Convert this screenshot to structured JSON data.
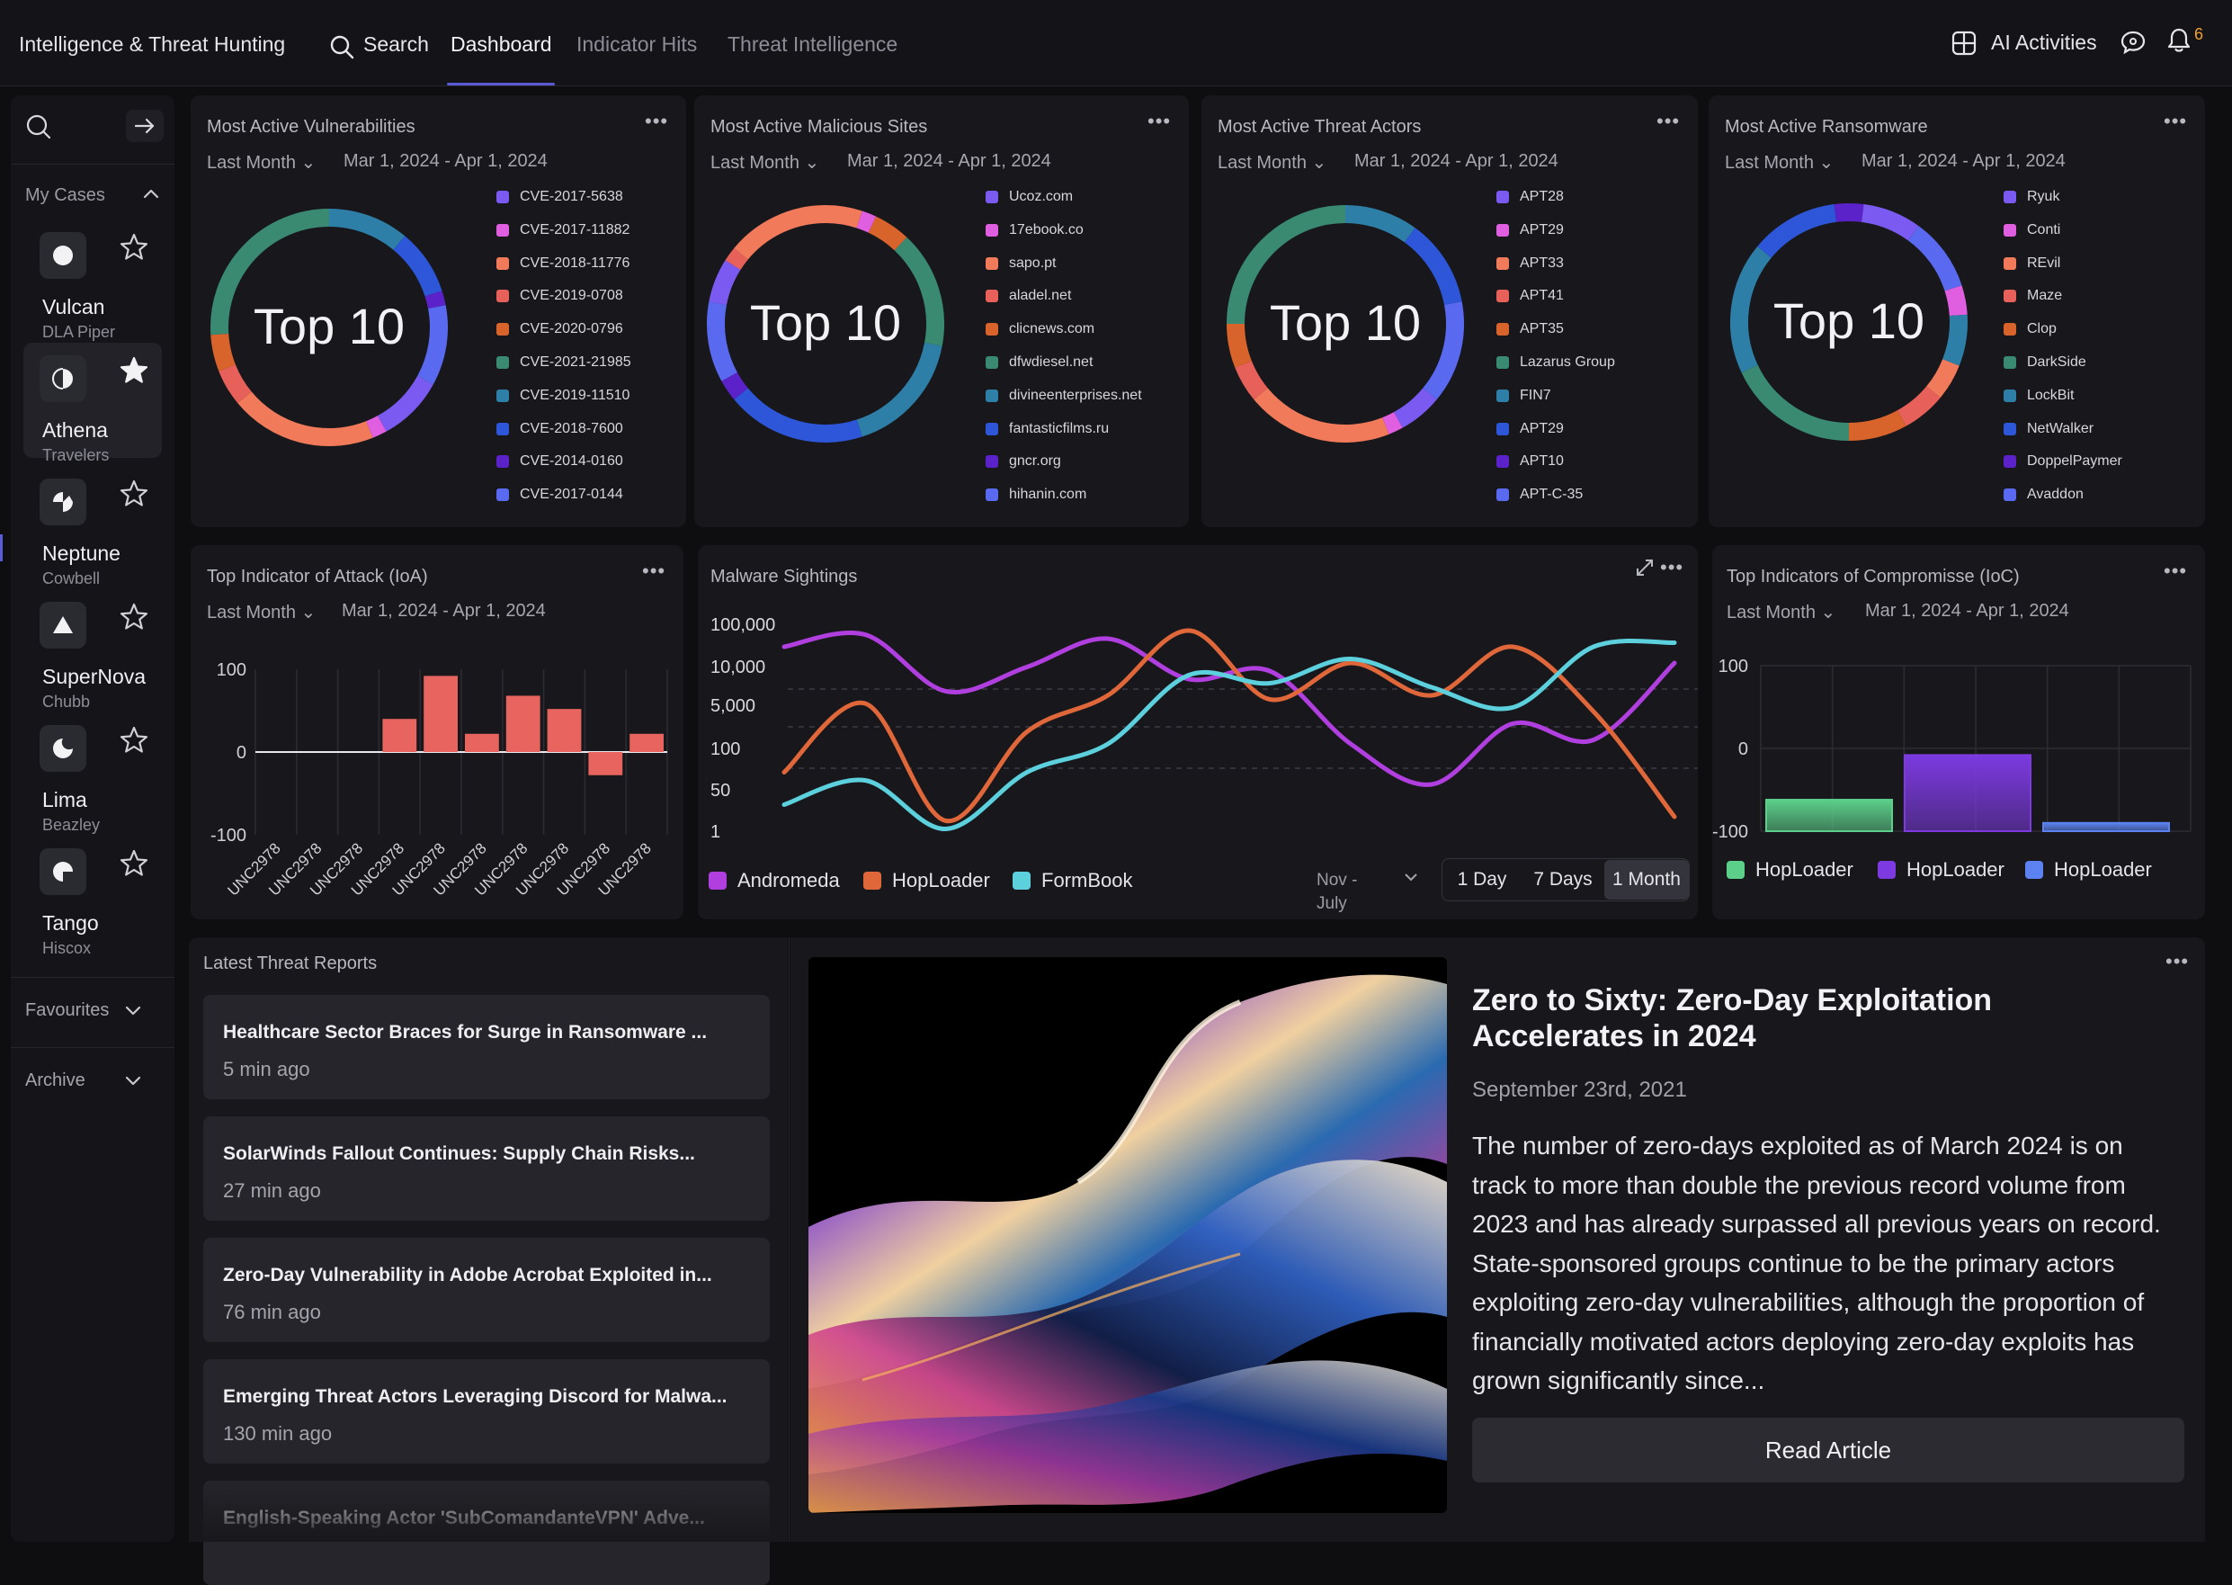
{
  "app": {
    "title": "Intelligence & Threat Hunting"
  },
  "nav": {
    "search_label": "Search",
    "tabs": [
      {
        "label": "Dashboard",
        "active": true
      },
      {
        "label": "Indicator Hits",
        "active": false
      },
      {
        "label": "Threat Intelligence",
        "active": false
      }
    ],
    "ai_label": "AI Activities",
    "notification_count": "6"
  },
  "sidebar": {
    "my_cases_label": "My Cases",
    "cases": [
      {
        "name": "Vulcan",
        "org": "DLA Piper",
        "starred": false,
        "selected": false,
        "icon": "circle-icon"
      },
      {
        "name": "Athena",
        "org": "Travelers",
        "starred": true,
        "selected": true,
        "icon": "half-circle-icon"
      },
      {
        "name": "Neptune",
        "org": "Cowbell",
        "starred": false,
        "selected": false,
        "icon": "pinwheel-icon"
      },
      {
        "name": "SuperNova",
        "org": "Chubb",
        "starred": false,
        "selected": false,
        "icon": "triangle-icon"
      },
      {
        "name": "Lima",
        "org": "Beazley",
        "starred": false,
        "selected": false,
        "icon": "moon-icon"
      },
      {
        "name": "Tango",
        "org": "Hiscox",
        "starred": false,
        "selected": false,
        "icon": "quarter-circle-icon"
      }
    ],
    "favourites_label": "Favourites",
    "archive_label": "Archive"
  },
  "colors": {
    "c1": "#7a5af0",
    "c2": "#e05ee0",
    "c3": "#f07a5a",
    "c4": "#e8605a",
    "c5": "#d8642c",
    "c6": "#3a8a72",
    "c7": "#2e7fa8",
    "c8": "#2e56d8",
    "c9": "#5a22c8",
    "c10": "#5a6af0",
    "bar_red": "#e8645e",
    "andromeda": "#b13fe0",
    "hoploader": "#e0673a",
    "formbook": "#5cd0dc",
    "ioc_green": "#5ccf8a",
    "ioc_purple": "#7c3ae0",
    "ioc_blue": "#5b82f0"
  },
  "top_cards": [
    {
      "title": "Most Active Vulnerabilities",
      "period": "Last Month",
      "range": "Mar 1, 2024 - Apr 1, 2024",
      "center": "Top 10",
      "items": [
        "CVE-2017-5638",
        "CVE-2017-11882",
        "CVE-2018-11776",
        "CVE-2019-0708",
        "CVE-2020-0796",
        "CVE-2021-21985",
        "CVE-2019-11510",
        "CVE-2018-7600",
        "CVE-2014-0160",
        "CVE-2017-0144"
      ]
    },
    {
      "title": "Most Active Malicious Sites",
      "period": "Last Month",
      "range": "Mar 1, 2024 - Apr 1, 2024",
      "center": "Top 10",
      "items": [
        "Ucoz.com",
        "17ebook.co",
        "sapo.pt",
        "aladel.net",
        "clicnews.com",
        "dfwdiesel.net",
        "divineenterprises.net",
        "fantasticfilms.ru",
        "gncr.org",
        "hihanin.com"
      ]
    },
    {
      "title": "Most Active Threat Actors",
      "period": "Last Month",
      "range": "Mar 1, 2024 - Apr 1, 2024",
      "center": "Top 10",
      "items": [
        "APT28",
        "APT29",
        "APT33",
        "APT41",
        "APT35",
        "Lazarus Group",
        "FIN7",
        "APT29",
        "APT10",
        "APT-C-35"
      ]
    },
    {
      "title": "Most Active Ransomware",
      "period": "Last Month",
      "range": "Mar 1, 2024 - Apr 1, 2024",
      "center": "Top 10",
      "items": [
        "Ryuk",
        "Conti",
        "REvil",
        "Maze",
        "Clop",
        "DarkSide",
        "LockBit",
        "NetWalker",
        "DoppelPaymer",
        "Avaddon"
      ]
    }
  ],
  "chart_data": [
    {
      "type": "bar",
      "title": "Top Indicator of Attack (IoA)",
      "period": "Last Month",
      "range": "Mar 1, 2024 - Apr 1, 2024",
      "categories": [
        "UNC2978",
        "UNC2978",
        "UNC2978",
        "UNC2978",
        "UNC2978",
        "UNC2978",
        "UNC2978",
        "UNC2978",
        "UNC2978",
        "UNC2978"
      ],
      "values": [
        0,
        0,
        0,
        40,
        92,
        22,
        68,
        52,
        -28,
        22
      ],
      "yticks": [
        "100",
        "0",
        "-100"
      ],
      "ylim": [
        -100,
        100
      ],
      "grid": true
    },
    {
      "type": "line",
      "title": "Malware Sightings",
      "yticks": [
        "100,000",
        "10,000",
        "5,000",
        "100",
        "50",
        "1"
      ],
      "series": [
        {
          "name": "Andromeda",
          "values": [
            4.6,
            4.9,
            3.5,
            4.1,
            4.8,
            3.8,
            4.0,
            2.2,
            1.2,
            2.7,
            2.3,
            4.2
          ]
        },
        {
          "name": "HopLoader",
          "values": [
            1.5,
            3.2,
            0.3,
            2.5,
            3.4,
            5.0,
            3.3,
            4.2,
            3.4,
            4.6,
            3.0,
            0.4
          ]
        },
        {
          "name": "FormBook",
          "values": [
            0.7,
            1.3,
            0.1,
            1.5,
            2.2,
            3.9,
            3.7,
            4.3,
            3.6,
            3.1,
            4.6,
            4.7
          ]
        }
      ],
      "range_selector": {
        "label": "Nov - July",
        "options": [
          "1 Day",
          "7 Days",
          "1 Month"
        ],
        "selected": "1 Month"
      }
    },
    {
      "type": "bar",
      "title": "Top Indicators of Compromisse (IoC)",
      "period": "Last Month",
      "range": "Mar 1, 2024 - Apr 1, 2024",
      "categories": [
        "HopLoader",
        "HopLoader",
        "HopLoader"
      ],
      "values": [
        -62,
        -8,
        -90
      ],
      "yticks": [
        "100",
        "0",
        "-100"
      ],
      "ylim": [
        -100,
        100
      ],
      "grid": true
    }
  ],
  "reports": {
    "title": "Latest Threat Reports",
    "items": [
      {
        "title": "Healthcare Sector Braces for Surge in Ransomware ...",
        "time": "5 min ago"
      },
      {
        "title": "SolarWinds Fallout Continues: Supply Chain Risks...",
        "time": "27 min ago"
      },
      {
        "title": "Zero-Day Vulnerability in Adobe Acrobat Exploited in...",
        "time": "76 min ago"
      },
      {
        "title": "Emerging Threat Actors Leveraging Discord for Malwa...",
        "time": "130 min ago"
      },
      {
        "title": "English-Speaking Actor 'SubComandanteVPN' Adve...",
        "time": ""
      }
    ]
  },
  "article": {
    "title": "Zero to Sixty: Zero-Day Exploitation Accelerates in 2024",
    "date": "September 23rd, 2021",
    "body": "The number of zero-days exploited as of March 2024 is on track to more than double the previous record volume from 2023 and has already surpassed all previous years on record. State-sponsored groups continue to be the primary actors exploiting zero-day vulnerabilities, although the proportion of financially motivated actors deploying zero-day exploits has grown significantly since...",
    "cta": "Read Article"
  }
}
